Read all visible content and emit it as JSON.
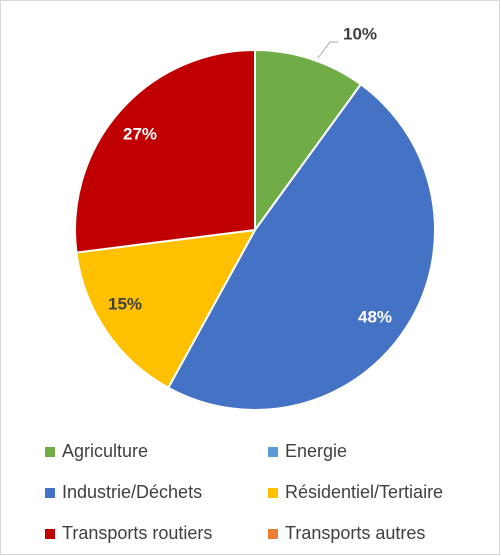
{
  "chart_data": {
    "type": "pie",
    "categories": [
      "Agriculture",
      "Energie",
      "Industrie/Déchets",
      "Résidentiel/Tertiaire",
      "Transports routiers",
      "Transports autres"
    ],
    "values": [
      10,
      0,
      48,
      15,
      27,
      0
    ],
    "value_labels": [
      "10%",
      null,
      "48%",
      "15%",
      "27%",
      null
    ],
    "colors": [
      "#70ad47",
      "#5b9bd5",
      "#4472c4",
      "#ffc000",
      "#c00000",
      "#ed7d31"
    ],
    "legend": "bottom"
  }
}
